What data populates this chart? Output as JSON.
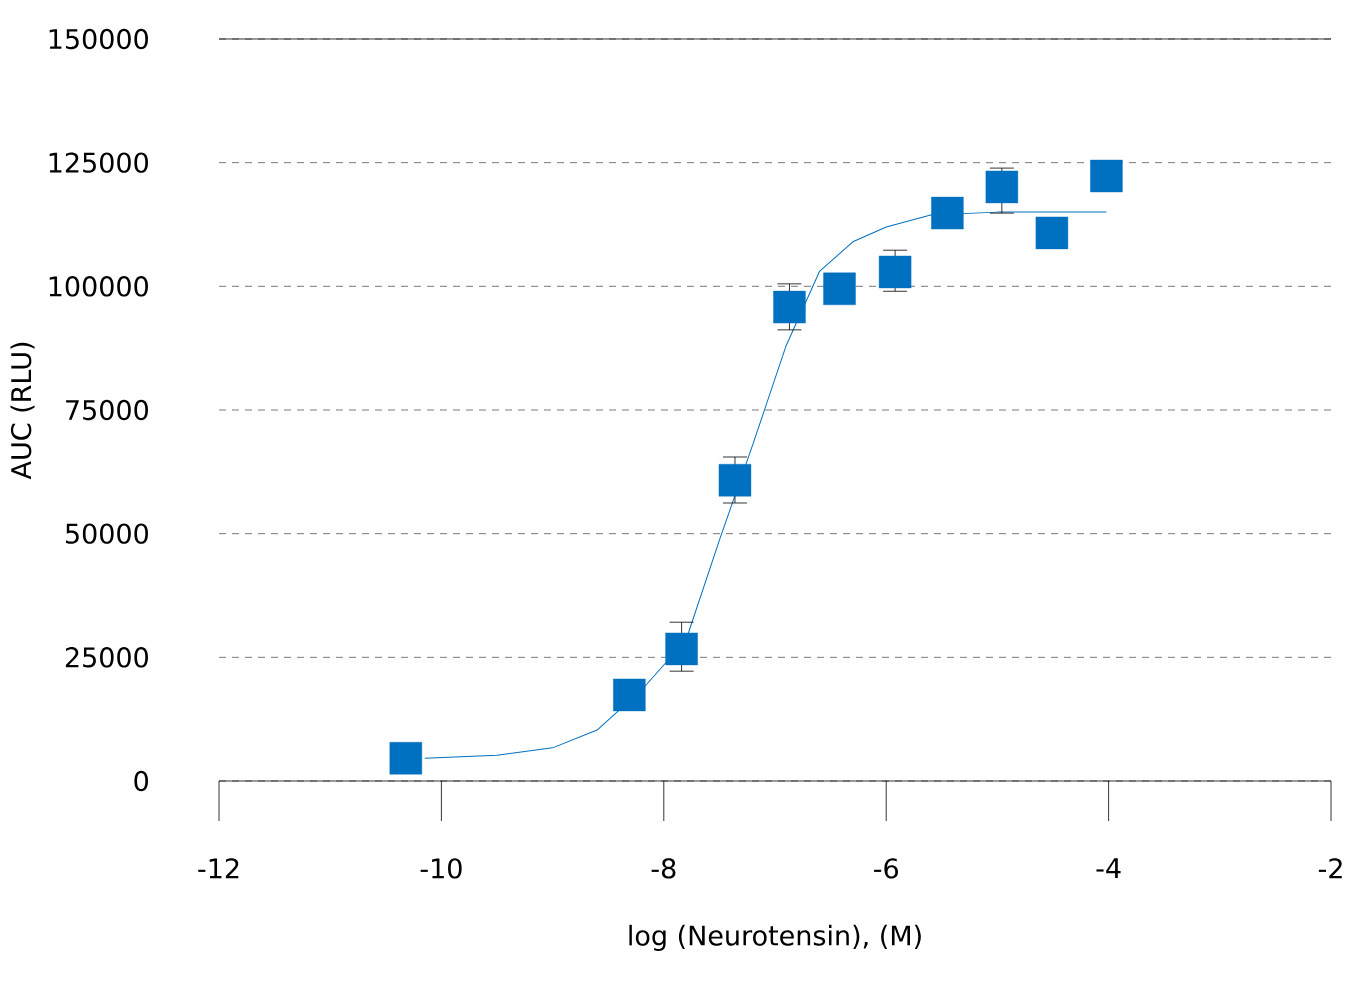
{
  "chart_data": {
    "type": "scatter",
    "xlabel": "log (Neurotensin), (M)",
    "ylabel": "AUC (RLU)",
    "xlim": [
      -12,
      -2
    ],
    "xticks": [
      -12,
      -10,
      -8,
      -6,
      -4,
      -2
    ],
    "ylim": [
      0,
      150000
    ],
    "yticks": [
      0,
      25000,
      50000,
      75000,
      100000,
      125000,
      150000
    ],
    "grid": "y",
    "series": [
      {
        "type": "scatter",
        "marker": "square",
        "color": "#0070c0",
        "x": [
          -10.32,
          -8.31,
          -7.84,
          -7.36,
          -6.87,
          -6.42,
          -5.92,
          -5.45,
          -4.96,
          -4.51,
          -4.02
        ],
        "values": [
          4600,
          17400,
          26700,
          60800,
          95800,
          99500,
          102900,
          114800,
          120100,
          110800,
          122300
        ],
        "errors": [
          null,
          null,
          [
            22200,
            32100
          ],
          [
            56200,
            65500
          ],
          [
            91200,
            100500
          ],
          null,
          [
            99000,
            107300
          ],
          null,
          [
            114800,
            123900
          ],
          null,
          null
        ]
      },
      {
        "type": "line",
        "marker": "none",
        "color": "#0070c0",
        "x": [
          -10.15,
          -9.5,
          -9.0,
          -8.6,
          -8.2,
          -7.8,
          -7.5,
          -7.2,
          -6.9,
          -6.6,
          -6.3,
          -6.0,
          -5.6,
          -5.0,
          -4.5,
          -4.02
        ],
        "values": [
          4600,
          5200,
          6700,
          10300,
          18400,
          28500,
          48700,
          68000,
          88000,
          103000,
          109000,
          112000,
          114400,
          115000,
          115000,
          115000
        ]
      }
    ]
  }
}
